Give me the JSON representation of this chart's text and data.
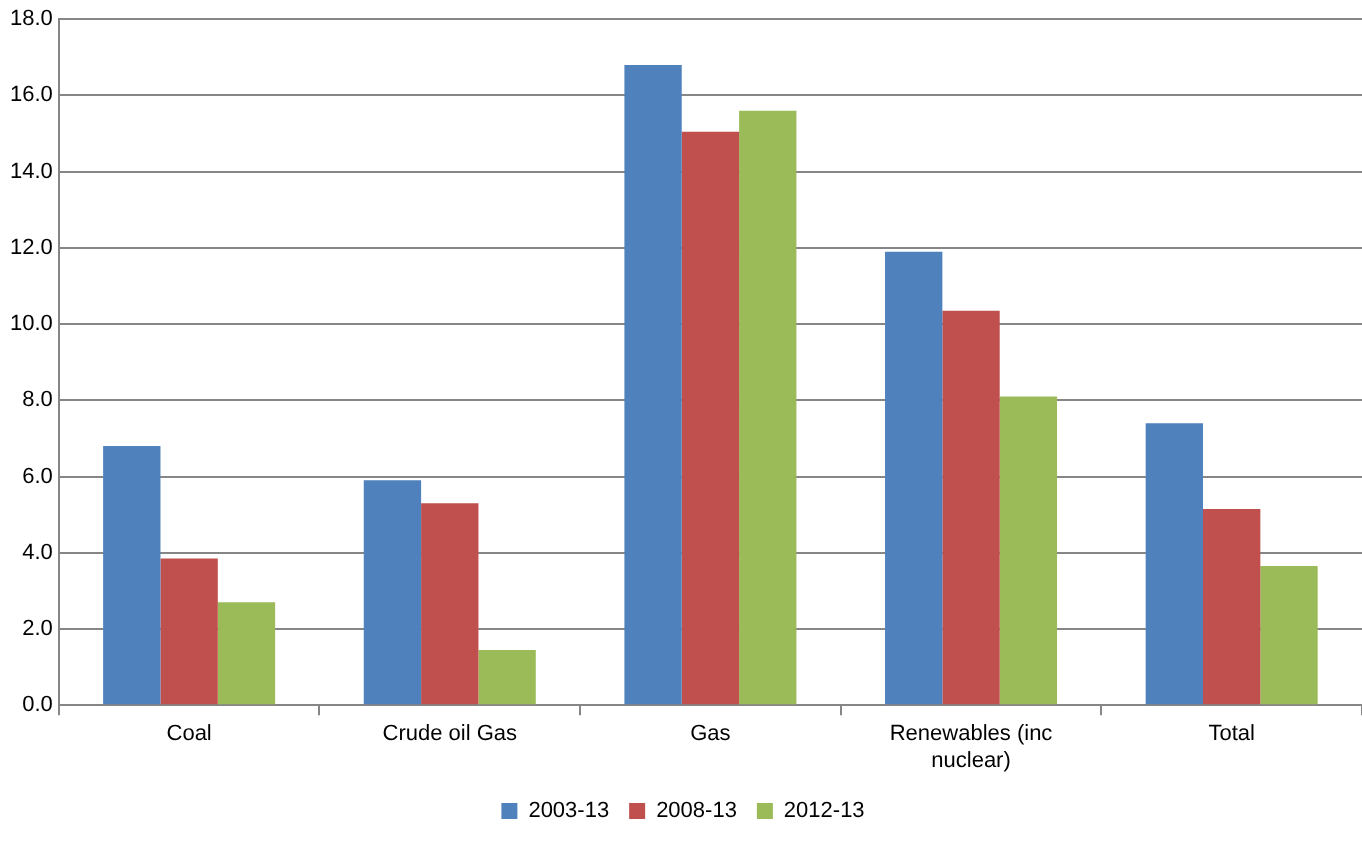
{
  "chart_data": {
    "type": "bar",
    "categories": [
      "Coal",
      "Crude oil Gas",
      "Gas",
      "Renewables (inc nuclear)",
      "Total"
    ],
    "series": [
      {
        "name": "2003-13",
        "color": "#4f81bd",
        "values": [
          6.8,
          5.9,
          16.8,
          11.9,
          7.4
        ]
      },
      {
        "name": "2008-13",
        "color": "#c0504d",
        "values": [
          3.85,
          5.3,
          15.05,
          10.35,
          5.15
        ]
      },
      {
        "name": "2012-13",
        "color": "#9bbb59",
        "values": [
          2.7,
          1.45,
          15.6,
          8.1,
          3.65
        ]
      }
    ],
    "ylim": [
      0,
      18
    ],
    "yticks": [
      {
        "value": 0,
        "label": "0.0"
      },
      {
        "value": 2,
        "label": "2.0"
      },
      {
        "value": 4,
        "label": "4.0"
      },
      {
        "value": 6,
        "label": "6.0"
      },
      {
        "value": 8,
        "label": "8.0"
      },
      {
        "value": 10,
        "label": "10.0"
      },
      {
        "value": 12,
        "label": "12.0"
      },
      {
        "value": 14,
        "label": "14.0"
      },
      {
        "value": 16,
        "label": "16.0"
      },
      {
        "value": 18,
        "label": "18.0"
      }
    ],
    "grid": "y",
    "legend": "bottom"
  }
}
